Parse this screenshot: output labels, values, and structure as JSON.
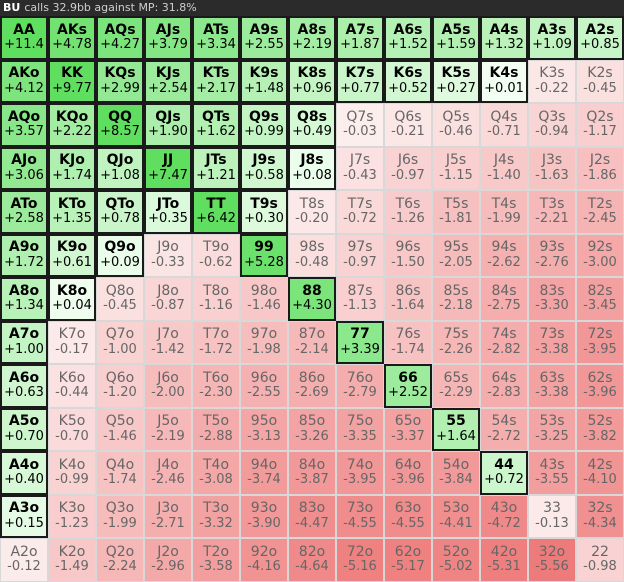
{
  "header": {
    "position": "BU",
    "text": "calls 32.9bb against MP: 31.8%"
  },
  "grid": {
    "rows": [
      [
        {
          "hand": "AA",
          "value": 11.4,
          "label": "+11.4"
        },
        {
          "hand": "AKs",
          "value": 4.78,
          "label": "+4.78"
        },
        {
          "hand": "AQs",
          "value": 4.27,
          "label": "+4.27"
        },
        {
          "hand": "AJs",
          "value": 3.79,
          "label": "+3.79"
        },
        {
          "hand": "ATs",
          "value": 3.34,
          "label": "+3.34"
        },
        {
          "hand": "A9s",
          "value": 2.55,
          "label": "+2.55"
        },
        {
          "hand": "A8s",
          "value": 2.19,
          "label": "+2.19"
        },
        {
          "hand": "A7s",
          "value": 1.87,
          "label": "+1.87"
        },
        {
          "hand": "A6s",
          "value": 1.52,
          "label": "+1.52"
        },
        {
          "hand": "A5s",
          "value": 1.59,
          "label": "+1.59"
        },
        {
          "hand": "A4s",
          "value": 1.32,
          "label": "+1.32"
        },
        {
          "hand": "A3s",
          "value": 1.09,
          "label": "+1.09"
        },
        {
          "hand": "A2s",
          "value": 0.85,
          "label": "+0.85"
        }
      ],
      [
        {
          "hand": "AKo",
          "value": 4.12,
          "label": "+4.12"
        },
        {
          "hand": "KK",
          "value": 9.77,
          "label": "+9.77"
        },
        {
          "hand": "KQs",
          "value": 2.99,
          "label": "+2.99"
        },
        {
          "hand": "KJs",
          "value": 2.54,
          "label": "+2.54"
        },
        {
          "hand": "KTs",
          "value": 2.17,
          "label": "+2.17"
        },
        {
          "hand": "K9s",
          "value": 1.48,
          "label": "+1.48"
        },
        {
          "hand": "K8s",
          "value": 0.96,
          "label": "+0.96"
        },
        {
          "hand": "K7s",
          "value": 0.77,
          "label": "+0.77"
        },
        {
          "hand": "K6s",
          "value": 0.52,
          "label": "+0.52"
        },
        {
          "hand": "K5s",
          "value": 0.27,
          "label": "+0.27"
        },
        {
          "hand": "K4s",
          "value": 0.01,
          "label": "+0.01"
        },
        {
          "hand": "K3s",
          "value": -0.22,
          "label": "-0.22"
        },
        {
          "hand": "K2s",
          "value": -0.45,
          "label": "-0.45"
        }
      ],
      [
        {
          "hand": "AQo",
          "value": 3.57,
          "label": "+3.57"
        },
        {
          "hand": "KQo",
          "value": 2.22,
          "label": "+2.22"
        },
        {
          "hand": "QQ",
          "value": 8.57,
          "label": "+8.57"
        },
        {
          "hand": "QJs",
          "value": 1.9,
          "label": "+1.90"
        },
        {
          "hand": "QTs",
          "value": 1.62,
          "label": "+1.62"
        },
        {
          "hand": "Q9s",
          "value": 0.99,
          "label": "+0.99"
        },
        {
          "hand": "Q8s",
          "value": 0.49,
          "label": "+0.49"
        },
        {
          "hand": "Q7s",
          "value": -0.03,
          "label": "-0.03"
        },
        {
          "hand": "Q6s",
          "value": -0.21,
          "label": "-0.21"
        },
        {
          "hand": "Q5s",
          "value": -0.46,
          "label": "-0.46"
        },
        {
          "hand": "Q4s",
          "value": -0.71,
          "label": "-0.71"
        },
        {
          "hand": "Q3s",
          "value": -0.94,
          "label": "-0.94"
        },
        {
          "hand": "Q2s",
          "value": -1.17,
          "label": "-1.17"
        }
      ],
      [
        {
          "hand": "AJo",
          "value": 3.06,
          "label": "+3.06"
        },
        {
          "hand": "KJo",
          "value": 1.74,
          "label": "+1.74"
        },
        {
          "hand": "QJo",
          "value": 1.08,
          "label": "+1.08"
        },
        {
          "hand": "JJ",
          "value": 7.47,
          "label": "+7.47"
        },
        {
          "hand": "JTs",
          "value": 1.21,
          "label": "+1.21"
        },
        {
          "hand": "J9s",
          "value": 0.58,
          "label": "+0.58"
        },
        {
          "hand": "J8s",
          "value": 0.08,
          "label": "+0.08"
        },
        {
          "hand": "J7s",
          "value": -0.43,
          "label": "-0.43"
        },
        {
          "hand": "J6s",
          "value": -0.97,
          "label": "-0.97"
        },
        {
          "hand": "J5s",
          "value": -1.15,
          "label": "-1.15"
        },
        {
          "hand": "J4s",
          "value": -1.4,
          "label": "-1.40"
        },
        {
          "hand": "J3s",
          "value": -1.63,
          "label": "-1.63"
        },
        {
          "hand": "J2s",
          "value": -1.86,
          "label": "-1.86"
        }
      ],
      [
        {
          "hand": "ATo",
          "value": 2.58,
          "label": "+2.58"
        },
        {
          "hand": "KTo",
          "value": 1.35,
          "label": "+1.35"
        },
        {
          "hand": "QTo",
          "value": 0.78,
          "label": "+0.78"
        },
        {
          "hand": "JTo",
          "value": 0.35,
          "label": "+0.35"
        },
        {
          "hand": "TT",
          "value": 6.42,
          "label": "+6.42"
        },
        {
          "hand": "T9s",
          "value": 0.3,
          "label": "+0.30"
        },
        {
          "hand": "T8s",
          "value": -0.2,
          "label": "-0.20"
        },
        {
          "hand": "T7s",
          "value": -0.72,
          "label": "-0.72"
        },
        {
          "hand": "T6s",
          "value": -1.26,
          "label": "-1.26"
        },
        {
          "hand": "T5s",
          "value": -1.81,
          "label": "-1.81"
        },
        {
          "hand": "T4s",
          "value": -1.99,
          "label": "-1.99"
        },
        {
          "hand": "T3s",
          "value": -2.21,
          "label": "-2.21"
        },
        {
          "hand": "T2s",
          "value": -2.45,
          "label": "-2.45"
        }
      ],
      [
        {
          "hand": "A9o",
          "value": 1.72,
          "label": "+1.72"
        },
        {
          "hand": "K9o",
          "value": 0.61,
          "label": "+0.61"
        },
        {
          "hand": "Q9o",
          "value": 0.09,
          "label": "+0.09"
        },
        {
          "hand": "J9o",
          "value": -0.33,
          "label": "-0.33"
        },
        {
          "hand": "T9o",
          "value": -0.62,
          "label": "-0.62"
        },
        {
          "hand": "99",
          "value": 5.28,
          "label": "+5.28"
        },
        {
          "hand": "98s",
          "value": -0.48,
          "label": "-0.48"
        },
        {
          "hand": "97s",
          "value": -0.97,
          "label": "-0.97"
        },
        {
          "hand": "96s",
          "value": -1.5,
          "label": "-1.50"
        },
        {
          "hand": "95s",
          "value": -2.05,
          "label": "-2.05"
        },
        {
          "hand": "94s",
          "value": -2.62,
          "label": "-2.62"
        },
        {
          "hand": "93s",
          "value": -2.76,
          "label": "-2.76"
        },
        {
          "hand": "92s",
          "value": -3.0,
          "label": "-3.00"
        }
      ],
      [
        {
          "hand": "A8o",
          "value": 1.34,
          "label": "+1.34"
        },
        {
          "hand": "K8o",
          "value": 0.04,
          "label": "+0.04"
        },
        {
          "hand": "Q8o",
          "value": -0.45,
          "label": "-0.45"
        },
        {
          "hand": "J8o",
          "value": -0.87,
          "label": "-0.87"
        },
        {
          "hand": "T8o",
          "value": -1.16,
          "label": "-1.16"
        },
        {
          "hand": "98o",
          "value": -1.46,
          "label": "-1.46"
        },
        {
          "hand": "88",
          "value": 4.3,
          "label": "+4.30"
        },
        {
          "hand": "87s",
          "value": -1.13,
          "label": "-1.13"
        },
        {
          "hand": "86s",
          "value": -1.64,
          "label": "-1.64"
        },
        {
          "hand": "85s",
          "value": -2.18,
          "label": "-2.18"
        },
        {
          "hand": "84s",
          "value": -2.75,
          "label": "-2.75"
        },
        {
          "hand": "83s",
          "value": -3.3,
          "label": "-3.30"
        },
        {
          "hand": "82s",
          "value": -3.45,
          "label": "-3.45"
        }
      ],
      [
        {
          "hand": "A7o",
          "value": 1.0,
          "label": "+1.00"
        },
        {
          "hand": "K7o",
          "value": -0.17,
          "label": "-0.17"
        },
        {
          "hand": "Q7o",
          "value": -1.0,
          "label": "-1.00"
        },
        {
          "hand": "J7o",
          "value": -1.42,
          "label": "-1.42"
        },
        {
          "hand": "T7o",
          "value": -1.72,
          "label": "-1.72"
        },
        {
          "hand": "97o",
          "value": -1.98,
          "label": "-1.98"
        },
        {
          "hand": "87o",
          "value": -2.14,
          "label": "-2.14"
        },
        {
          "hand": "77",
          "value": 3.39,
          "label": "+3.39"
        },
        {
          "hand": "76s",
          "value": -1.74,
          "label": "-1.74"
        },
        {
          "hand": "75s",
          "value": -2.26,
          "label": "-2.26"
        },
        {
          "hand": "74s",
          "value": -2.82,
          "label": "-2.82"
        },
        {
          "hand": "73s",
          "value": -3.38,
          "label": "-3.38"
        },
        {
          "hand": "72s",
          "value": -3.95,
          "label": "-3.95"
        }
      ],
      [
        {
          "hand": "A6o",
          "value": 0.63,
          "label": "+0.63"
        },
        {
          "hand": "K6o",
          "value": -0.44,
          "label": "-0.44"
        },
        {
          "hand": "Q6o",
          "value": -1.2,
          "label": "-1.20"
        },
        {
          "hand": "J6o",
          "value": -2.0,
          "label": "-2.00"
        },
        {
          "hand": "T6o",
          "value": -2.3,
          "label": "-2.30"
        },
        {
          "hand": "96o",
          "value": -2.55,
          "label": "-2.55"
        },
        {
          "hand": "86o",
          "value": -2.69,
          "label": "-2.69"
        },
        {
          "hand": "76o",
          "value": -2.79,
          "label": "-2.79"
        },
        {
          "hand": "66",
          "value": 2.52,
          "label": "+2.52"
        },
        {
          "hand": "65s",
          "value": -2.29,
          "label": "-2.29"
        },
        {
          "hand": "64s",
          "value": -2.83,
          "label": "-2.83"
        },
        {
          "hand": "63s",
          "value": -3.38,
          "label": "-3.38"
        },
        {
          "hand": "62s",
          "value": -3.96,
          "label": "-3.96"
        }
      ],
      [
        {
          "hand": "A5o",
          "value": 0.7,
          "label": "+0.70"
        },
        {
          "hand": "K5o",
          "value": -0.7,
          "label": "-0.70"
        },
        {
          "hand": "Q5o",
          "value": -1.46,
          "label": "-1.46"
        },
        {
          "hand": "J5o",
          "value": -2.19,
          "label": "-2.19"
        },
        {
          "hand": "T5o",
          "value": -2.88,
          "label": "-2.88"
        },
        {
          "hand": "95o",
          "value": -3.13,
          "label": "-3.13"
        },
        {
          "hand": "85o",
          "value": -3.26,
          "label": "-3.26"
        },
        {
          "hand": "75o",
          "value": -3.35,
          "label": "-3.35"
        },
        {
          "hand": "65o",
          "value": -3.37,
          "label": "-3.37"
        },
        {
          "hand": "55",
          "value": 1.64,
          "label": "+1.64"
        },
        {
          "hand": "54s",
          "value": -2.72,
          "label": "-2.72"
        },
        {
          "hand": "53s",
          "value": -3.25,
          "label": "-3.25"
        },
        {
          "hand": "52s",
          "value": -3.82,
          "label": "-3.82"
        }
      ],
      [
        {
          "hand": "A4o",
          "value": 0.4,
          "label": "+0.40"
        },
        {
          "hand": "K4o",
          "value": -0.99,
          "label": "-0.99"
        },
        {
          "hand": "Q4o",
          "value": -1.74,
          "label": "-1.74"
        },
        {
          "hand": "J4o",
          "value": -2.46,
          "label": "-2.46"
        },
        {
          "hand": "T4o",
          "value": -3.08,
          "label": "-3.08"
        },
        {
          "hand": "94o",
          "value": -3.74,
          "label": "-3.74"
        },
        {
          "hand": "84o",
          "value": -3.87,
          "label": "-3.87"
        },
        {
          "hand": "74o",
          "value": -3.95,
          "label": "-3.95"
        },
        {
          "hand": "64o",
          "value": -3.96,
          "label": "-3.96"
        },
        {
          "hand": "54o",
          "value": -3.84,
          "label": "-3.84"
        },
        {
          "hand": "44",
          "value": 0.72,
          "label": "+0.72"
        },
        {
          "hand": "43s",
          "value": -3.55,
          "label": "-3.55"
        },
        {
          "hand": "42s",
          "value": -4.1,
          "label": "-4.10"
        }
      ],
      [
        {
          "hand": "A3o",
          "value": 0.15,
          "label": "+0.15"
        },
        {
          "hand": "K3o",
          "value": -1.23,
          "label": "-1.23"
        },
        {
          "hand": "Q3o",
          "value": -1.99,
          "label": "-1.99"
        },
        {
          "hand": "J3o",
          "value": -2.71,
          "label": "-2.71"
        },
        {
          "hand": "T3o",
          "value": -3.32,
          "label": "-3.32"
        },
        {
          "hand": "93o",
          "value": -3.9,
          "label": "-3.90"
        },
        {
          "hand": "83o",
          "value": -4.47,
          "label": "-4.47"
        },
        {
          "hand": "73o",
          "value": -4.55,
          "label": "-4.55"
        },
        {
          "hand": "63o",
          "value": -4.55,
          "label": "-4.55"
        },
        {
          "hand": "53o",
          "value": -4.41,
          "label": "-4.41"
        },
        {
          "hand": "43o",
          "value": -4.72,
          "label": "-4.72"
        },
        {
          "hand": "33",
          "value": -0.13,
          "label": "-0.13"
        },
        {
          "hand": "32s",
          "value": -4.34,
          "label": "-4.34"
        }
      ],
      [
        {
          "hand": "A2o",
          "value": -0.12,
          "label": "-0.12"
        },
        {
          "hand": "K2o",
          "value": -1.49,
          "label": "-1.49"
        },
        {
          "hand": "Q2o",
          "value": -2.24,
          "label": "-2.24"
        },
        {
          "hand": "J2o",
          "value": -2.96,
          "label": "-2.96"
        },
        {
          "hand": "T2o",
          "value": -3.58,
          "label": "-3.58"
        },
        {
          "hand": "92o",
          "value": -4.16,
          "label": "-4.16"
        },
        {
          "hand": "82o",
          "value": -4.64,
          "label": "-4.64"
        },
        {
          "hand": "72o",
          "value": -5.16,
          "label": "-5.16"
        },
        {
          "hand": "62o",
          "value": -5.17,
          "label": "-5.17"
        },
        {
          "hand": "52o",
          "value": -5.02,
          "label": "-5.02"
        },
        {
          "hand": "42o",
          "value": -5.31,
          "label": "-5.31"
        },
        {
          "hand": "32o",
          "value": -5.56,
          "label": "-5.56"
        },
        {
          "hand": "22",
          "value": -0.98,
          "label": "-0.98"
        }
      ]
    ]
  }
}
